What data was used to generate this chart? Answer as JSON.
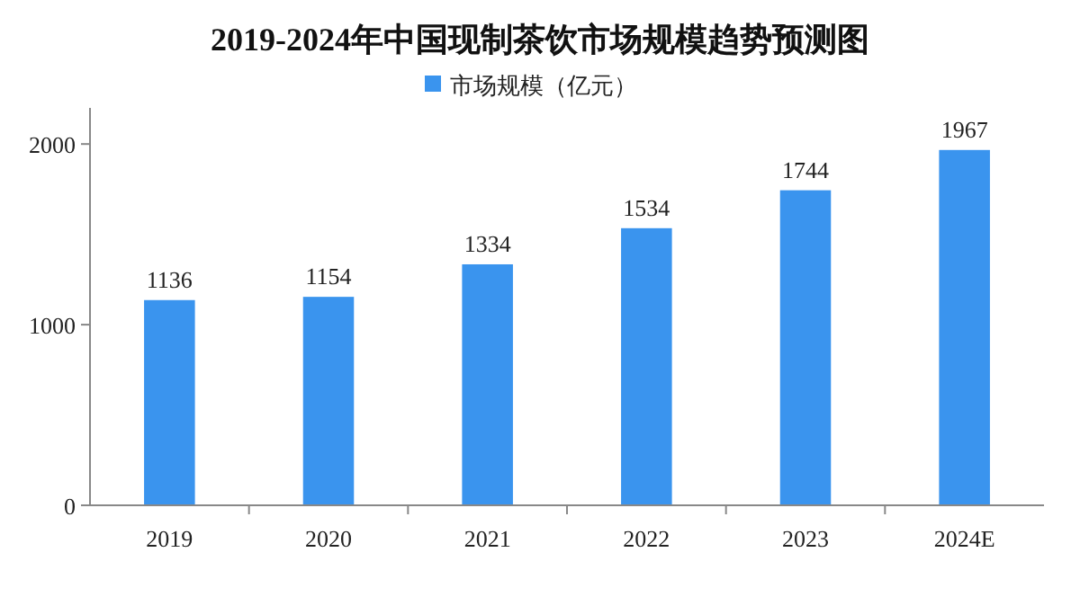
{
  "chart_data": {
    "type": "bar",
    "title": "2019-2024年中国现制茶饮市场规模趋势预测图",
    "categories": [
      "2019",
      "2020",
      "2021",
      "2022",
      "2023",
      "2024E"
    ],
    "series": [
      {
        "name": "市场规模（亿元）",
        "color": "#3a94ee",
        "values": [
          1136,
          1154,
          1334,
          1534,
          1744,
          1967
        ]
      }
    ],
    "ylim": [
      0,
      2200
    ],
    "yticks": [
      0,
      1000,
      2000
    ],
    "data_labels": true,
    "legend": "top",
    "grid": false
  }
}
